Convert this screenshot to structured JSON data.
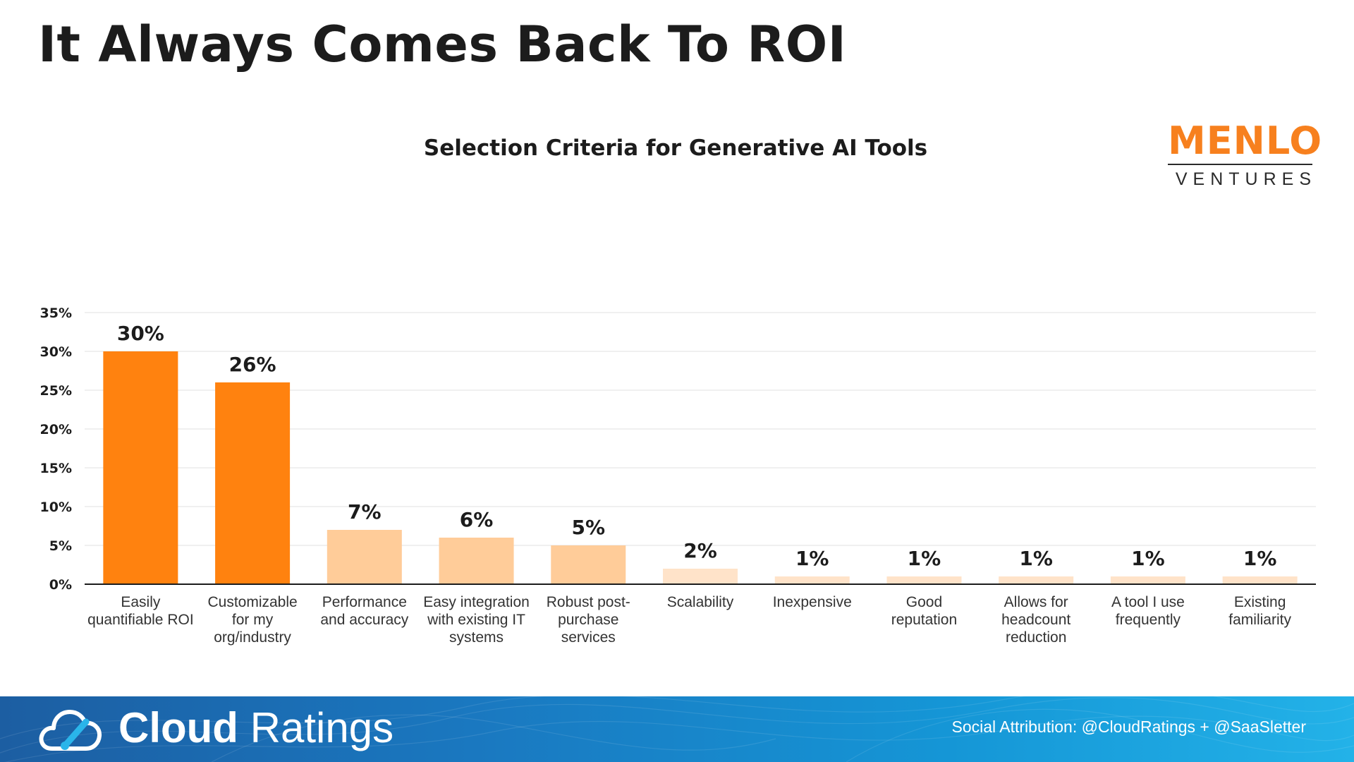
{
  "slide": {
    "title": "It Always Comes Back To ROI"
  },
  "logo": {
    "top": "MENLO",
    "bottom": "VENTURES",
    "color": "#f7801e"
  },
  "footer": {
    "brand_strong": "Cloud",
    "brand_light": "Ratings",
    "attribution": "Social Attribution: @CloudRatings + @SaaSletter",
    "icon": "cloud-gauge-icon"
  },
  "chart_data": {
    "type": "bar",
    "title": "Selection Criteria for Generative AI Tools",
    "xlabel": "",
    "ylabel": "",
    "ylim": [
      0,
      35
    ],
    "yticks": [
      0,
      5,
      10,
      15,
      20,
      25,
      30,
      35
    ],
    "ytick_labels": [
      "0%",
      "5%",
      "10%",
      "15%",
      "20%",
      "25%",
      "30%",
      "35%"
    ],
    "grid": true,
    "categories": [
      [
        "Easily",
        "quantifiable ROI"
      ],
      [
        "Customizable",
        "for my",
        "org/industry"
      ],
      [
        "Performance",
        "and accuracy"
      ],
      [
        "Easy integration",
        "with existing IT",
        "systems"
      ],
      [
        "Robust post-",
        "purchase",
        "services"
      ],
      [
        "Scalability"
      ],
      [
        "Inexpensive"
      ],
      [
        "Good",
        "reputation"
      ],
      [
        "Allows for",
        "headcount",
        "reduction"
      ],
      [
        "A tool I use",
        "frequently"
      ],
      [
        "Existing",
        "familiarity"
      ]
    ],
    "values": [
      30,
      26,
      7,
      6,
      5,
      2,
      1,
      1,
      1,
      1,
      1
    ],
    "value_labels": [
      "30%",
      "26%",
      "7%",
      "6%",
      "5%",
      "2%",
      "1%",
      "1%",
      "1%",
      "1%",
      "1%"
    ],
    "colors": [
      "#ff820f",
      "#ff820f",
      "#ffcc99",
      "#ffcc99",
      "#ffcc99",
      "#ffe3c9",
      "#ffe3c9",
      "#ffe3c9",
      "#ffe3c9",
      "#ffe3c9",
      "#ffe3c9"
    ]
  }
}
